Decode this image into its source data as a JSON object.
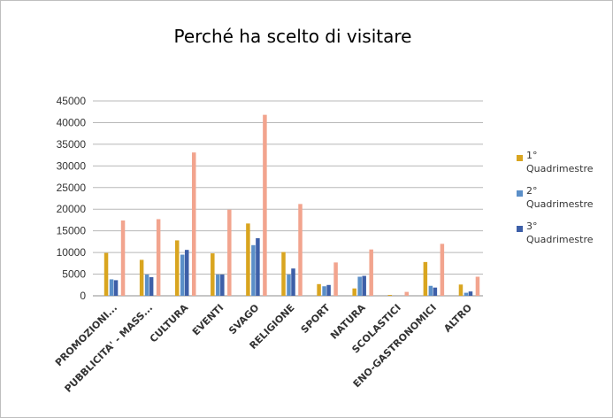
{
  "chart_data": {
    "type": "bar",
    "title": "Perché ha scelto di visitare",
    "categories": [
      "PROMOZIONI...",
      "PUBBLICITA' - MASS...",
      "CULTURA",
      "EVENTI",
      "SVAGO",
      "RELIGIONE",
      "SPORT",
      "NATURA",
      "SCOLASTICI",
      "ENO-GASTRONOMICI",
      "ALTRO"
    ],
    "series": [
      {
        "name": "1° Quadrimestre",
        "color": "#d9a520",
        "values": [
          9900,
          8300,
          12800,
          9800,
          16700,
          10100,
          2700,
          1700,
          200,
          7800,
          2600
        ]
      },
      {
        "name": "2° Quadrimestre",
        "color": "#5b8fc8",
        "values": [
          3800,
          4900,
          9500,
          4900,
          11700,
          4900,
          2200,
          4400,
          0,
          2300,
          700
        ]
      },
      {
        "name": "3° Quadrimestre",
        "color": "#3d5fa8",
        "values": [
          3600,
          4300,
          10600,
          4900,
          13300,
          6300,
          2500,
          4600,
          0,
          1900,
          1000
        ]
      },
      {
        "name": "",
        "color": "#f2a48e",
        "values": [
          17400,
          17700,
          33100,
          19900,
          41800,
          21200,
          7700,
          10700,
          900,
          12000,
          4400
        ]
      }
    ],
    "ylim": [
      0,
      45000
    ],
    "yticks": [
      0,
      5000,
      10000,
      15000,
      20000,
      25000,
      30000,
      35000,
      40000,
      45000
    ],
    "grid": true,
    "legend_position": "right"
  }
}
